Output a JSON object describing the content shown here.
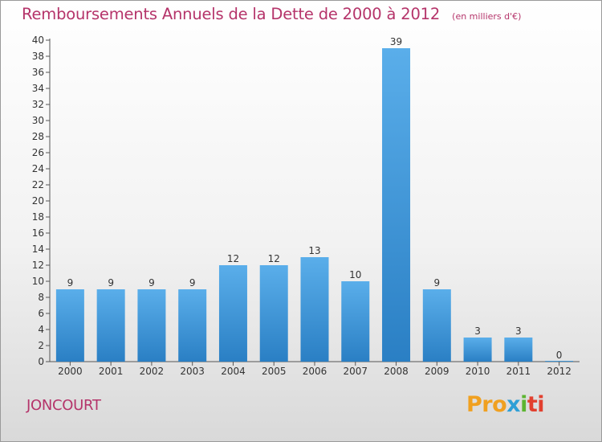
{
  "header": {
    "title": "Remboursements Annuels de la Dette de 2000 à 2012",
    "unit": "(en milliers d'€)"
  },
  "footer": {
    "commune": "JONCOURT",
    "brand_parts": [
      "Pro",
      "x",
      "i",
      "ti"
    ]
  },
  "colors": {
    "bar_light": "#5aaeea",
    "bar_dark": "#2a7fc4",
    "title": "#b5346a",
    "axis": "#555555"
  },
  "chart_data": {
    "type": "bar",
    "title": "Remboursements Annuels de la Dette de 2000 à 2012",
    "subtitle": "(en milliers d'€)",
    "xlabel": "",
    "ylabel": "",
    "categories": [
      "2000",
      "2001",
      "2002",
      "2003",
      "2004",
      "2005",
      "2006",
      "2007",
      "2008",
      "2009",
      "2010",
      "2011",
      "2012"
    ],
    "values": [
      9,
      9,
      9,
      9,
      12,
      12,
      13,
      10,
      39,
      9,
      3,
      3,
      0
    ],
    "ylim": [
      0,
      40
    ],
    "yticks": [
      0,
      2,
      4,
      6,
      8,
      10,
      12,
      14,
      16,
      18,
      20,
      22,
      24,
      26,
      28,
      30,
      32,
      34,
      36,
      38,
      40
    ],
    "grid": false,
    "legend": "none"
  }
}
